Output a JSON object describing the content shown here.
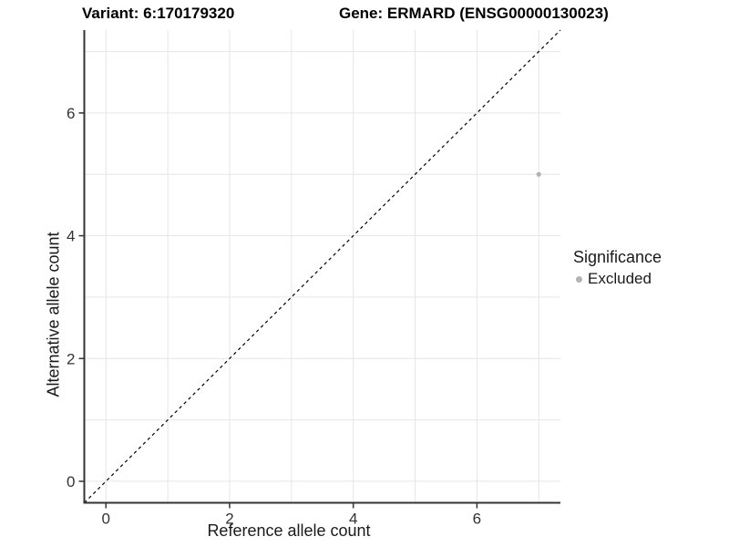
{
  "header": {
    "variant_title": "Variant: 6:170179320",
    "gene_title": "Gene: ERMARD (ENSG00000130023)"
  },
  "legend": {
    "title": "Significance",
    "items": [
      {
        "label": "Excluded",
        "color": "#b3b3b3"
      }
    ]
  },
  "chart_data": {
    "type": "scatter",
    "xlabel": "Reference allele count",
    "ylabel": "Alternative allele count",
    "xlim": [
      -0.35,
      7.35
    ],
    "ylim": [
      -0.35,
      7.35
    ],
    "x_ticks": [
      0,
      2,
      4,
      6
    ],
    "y_ticks": [
      0,
      2,
      4,
      6
    ],
    "grid_x": [
      0,
      1,
      2,
      3,
      4,
      5,
      6,
      7
    ],
    "grid_y": [
      0,
      1,
      2,
      3,
      4,
      5,
      6,
      7
    ],
    "points": [
      {
        "x": 7,
        "y": 5,
        "significance": "Excluded"
      }
    ],
    "identity_line": {
      "dashed": true,
      "from": -0.35,
      "to": 7.35
    },
    "colors": {
      "grid": "#e6e6e6",
      "axis": "#333333",
      "tick_text": "#333333",
      "identity": "#000000",
      "point": "#b3b3b3"
    }
  }
}
